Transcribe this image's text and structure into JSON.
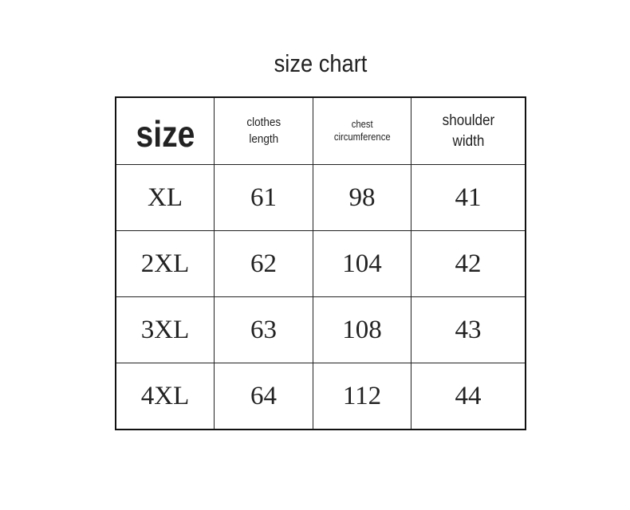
{
  "title": "size chart",
  "headers": [
    {
      "lines": [
        "size"
      ]
    },
    {
      "lines": [
        "clothes",
        "length"
      ]
    },
    {
      "lines": [
        "chest",
        "circumference"
      ]
    },
    {
      "lines": [
        "shoulder",
        "width"
      ]
    }
  ],
  "rows": [
    [
      "XL",
      "61",
      "98",
      "41"
    ],
    [
      "2XL",
      "62",
      "104",
      "42"
    ],
    [
      "3XL",
      "63",
      "108",
      "43"
    ],
    [
      "4XL",
      "64",
      "112",
      "44"
    ]
  ]
}
